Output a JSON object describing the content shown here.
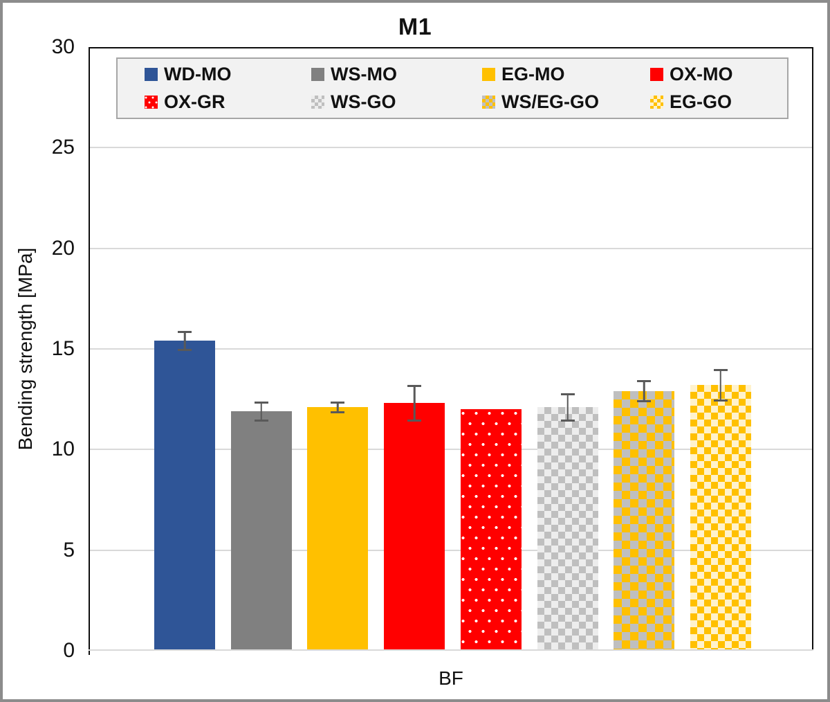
{
  "window": {
    "background": "#FFFFFF",
    "outer_border_color": "#8C8C8C"
  },
  "legend": {
    "background": "#F2F2F2",
    "border_color": "#A6A6A6",
    "position": "top"
  },
  "chart_data": {
    "type": "bar",
    "title": "M1",
    "xlabel": "BF",
    "ylabel": "Bending strength [MPa]",
    "ylim": [
      0,
      30
    ],
    "yticks": [
      0,
      5,
      10,
      15,
      20,
      25,
      30
    ],
    "grid": true,
    "gridline_color": "#D9D9D9",
    "axis_color": "#0D0D0D",
    "error_bar_color": "#595959",
    "categories": [
      "WD-MO",
      "WS-MO",
      "EG-MO",
      "OX-MO",
      "OX-GR",
      "WS-GO",
      "WS/EG-GO",
      "EG-GO"
    ],
    "series": [
      {
        "name": "WD-MO",
        "value": 15.4,
        "error": 0.5,
        "pattern": "solid",
        "color": "#2F5597",
        "color2": null
      },
      {
        "name": "WS-MO",
        "value": 11.9,
        "error": 0.5,
        "pattern": "solid",
        "color": "#808080",
        "color2": null
      },
      {
        "name": "EG-MO",
        "value": 12.1,
        "error": 0.3,
        "pattern": "solid",
        "color": "#FFC000",
        "color2": null
      },
      {
        "name": "OX-MO",
        "value": 12.3,
        "error": 0.9,
        "pattern": "solid",
        "color": "#FF0000",
        "color2": null
      },
      {
        "name": "OX-GR",
        "value": 12.0,
        "error": null,
        "pattern": "dots",
        "color": "#FF0000",
        "color2": "#FFFFFF"
      },
      {
        "name": "WS-GO",
        "value": 12.1,
        "error": 0.7,
        "pattern": "checker",
        "color": "#BFBFBF",
        "color2": "#EDEDED"
      },
      {
        "name": "WS/EG-GO",
        "value": 12.9,
        "error": 0.55,
        "pattern": "checker",
        "color": "#FFC000",
        "color2": "#BFBFBF"
      },
      {
        "name": "EG-GO",
        "value": 13.2,
        "error": 0.8,
        "pattern": "checker",
        "color": "#FFC000",
        "color2": "#FFF2CC"
      }
    ]
  }
}
